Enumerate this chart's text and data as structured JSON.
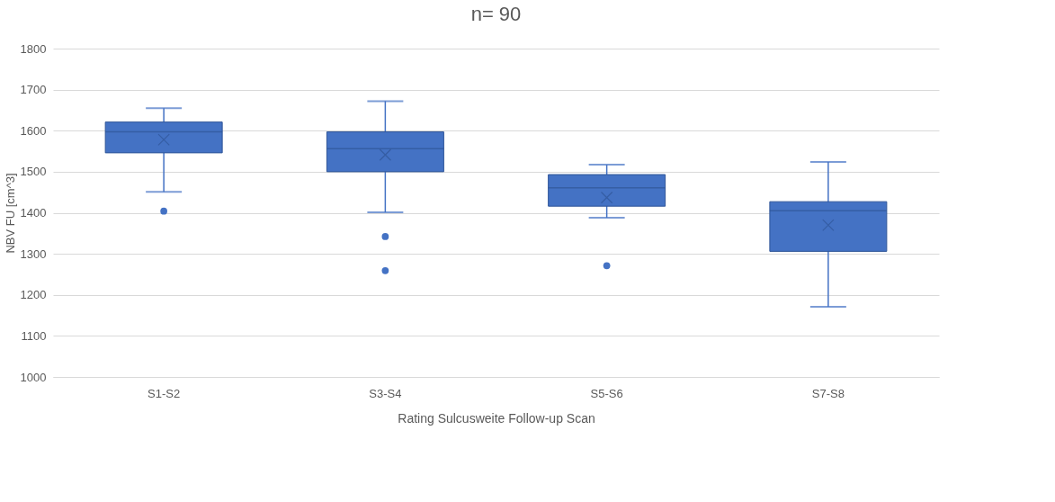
{
  "chart_data": {
    "type": "box",
    "title": "n= 90",
    "xlabel": "Rating Sulcusweite Follow-up Scan",
    "ylabel": "NBV FU [cm^3]",
    "categories": [
      "S1-S2",
      "S3-S4",
      "S5-S6",
      "S7-S8"
    ],
    "boxes": [
      {
        "low": 1451,
        "q1": 1546,
        "median": 1597,
        "q3": 1621,
        "high": 1655,
        "mean": 1578,
        "outliers": [
          1404
        ]
      },
      {
        "low": 1401,
        "q1": 1500,
        "median": 1556,
        "q3": 1597,
        "high": 1672,
        "mean": 1541,
        "outliers": [
          1342,
          1259
        ]
      },
      {
        "low": 1388,
        "q1": 1416,
        "median": 1461,
        "q3": 1493,
        "high": 1517,
        "mean": 1437,
        "outliers": [
          1271
        ]
      },
      {
        "low": 1171,
        "q1": 1306,
        "median": 1405,
        "q3": 1427,
        "high": 1524,
        "mean": 1370
      }
    ],
    "color": "#4472c4",
    "ylim": [
      1000,
      1800
    ],
    "yticks": [
      1000,
      1100,
      1200,
      1300,
      1400,
      1500,
      1600,
      1700,
      1800
    ],
    "grid": "y"
  }
}
